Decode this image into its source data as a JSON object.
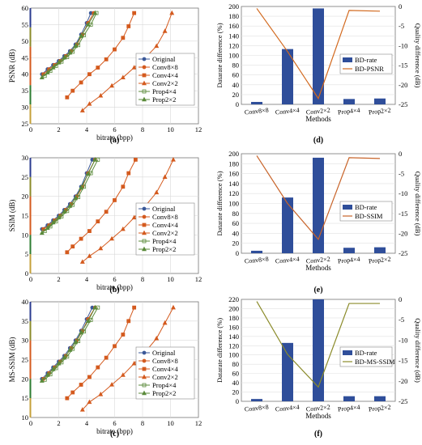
{
  "colors": {
    "original": "#3b5998",
    "conv": "#d45a1e",
    "prop": "#5a8a3a",
    "bar": "#2f4e9a",
    "line_psnr": "#d2691e",
    "line_ssim": "#c8642a",
    "line_msssim": "#8b8b2a"
  },
  "chart_data": [
    {
      "id": "a",
      "panel_label": "(a)",
      "type": "line",
      "ylabel": "PSNR (dB)",
      "xlabel": "bitrate (bpp)",
      "xlim": [
        0,
        12
      ],
      "ylim": [
        25,
        60
      ],
      "xticks": [
        "0",
        "2",
        "4",
        "6",
        "8",
        "10",
        "12"
      ],
      "yticks": [
        "25",
        "30",
        "35",
        "40",
        "45",
        "50",
        "55",
        "60"
      ],
      "grid": true,
      "legend": "bottom-right",
      "series": [
        {
          "name": "Original",
          "x": [
            0.8,
            1.2,
            1.6,
            2.0,
            2.4,
            2.8,
            3.2,
            3.6,
            4.0,
            4.3
          ],
          "y": [
            40.0,
            41.5,
            42.8,
            44.0,
            45.5,
            47.0,
            49.0,
            52.0,
            55.5,
            58.5
          ]
        },
        {
          "name": "Conv8×8",
          "x": [
            0.9,
            1.3,
            1.7,
            2.1,
            2.5,
            2.9,
            3.3,
            3.7,
            4.1,
            4.5
          ],
          "y": [
            40.0,
            41.5,
            42.8,
            44.0,
            45.5,
            47.0,
            49.0,
            52.0,
            55.5,
            58.5
          ]
        },
        {
          "name": "Conv4×4",
          "x": [
            2.6,
            3.0,
            3.6,
            4.2,
            4.8,
            5.4,
            6.0,
            6.6,
            7.0,
            7.4
          ],
          "y": [
            33.0,
            35.0,
            37.5,
            40.0,
            42.0,
            44.5,
            47.5,
            51.0,
            54.5,
            58.5
          ]
        },
        {
          "name": "Conv2×2",
          "x": [
            3.7,
            4.2,
            5.0,
            5.8,
            6.6,
            7.4,
            8.2,
            9.0,
            9.6,
            10.1
          ],
          "y": [
            29.0,
            31.0,
            33.5,
            36.5,
            39.0,
            42.0,
            45.0,
            48.5,
            53.0,
            58.5
          ]
        },
        {
          "name": "Prop4×4",
          "x": [
            1.0,
            1.4,
            1.8,
            2.2,
            2.6,
            3.0,
            3.4,
            3.8,
            4.3,
            4.7
          ],
          "y": [
            39.5,
            41.0,
            42.5,
            43.8,
            45.2,
            46.8,
            48.8,
            51.8,
            55.0,
            58.5
          ]
        },
        {
          "name": "Prop2×2",
          "x": [
            0.8,
            1.2,
            1.6,
            2.0,
            2.4,
            2.8,
            3.2,
            3.6,
            4.1,
            4.6
          ],
          "y": [
            39.0,
            40.5,
            42.0,
            43.5,
            45.0,
            46.5,
            48.5,
            51.5,
            55.0,
            58.5
          ]
        }
      ]
    },
    {
      "id": "b",
      "panel_label": "(b)",
      "type": "line",
      "ylabel": "SSIM (dB)",
      "xlabel": "bitrate (bpp)",
      "xlim": [
        0,
        12
      ],
      "ylim": [
        0,
        30
      ],
      "xticks": [
        "0",
        "2",
        "4",
        "6",
        "8",
        "10",
        "12"
      ],
      "yticks": [
        "0",
        "5",
        "10",
        "15",
        "20",
        "25",
        "30"
      ],
      "grid": true,
      "legend": "bottom-right",
      "series": [
        {
          "name": "Original",
          "x": [
            0.8,
            1.2,
            1.6,
            2.0,
            2.4,
            2.8,
            3.2,
            3.6,
            4.0,
            4.4
          ],
          "y": [
            11.5,
            12.5,
            13.8,
            15.0,
            16.5,
            18.0,
            20.0,
            22.5,
            26.0,
            29.5
          ]
        },
        {
          "name": "Conv8×8",
          "x": [
            0.9,
            1.3,
            1.7,
            2.1,
            2.5,
            2.9,
            3.3,
            3.7,
            4.1,
            4.6
          ],
          "y": [
            11.5,
            12.5,
            13.8,
            15.0,
            16.5,
            18.0,
            20.0,
            22.5,
            26.0,
            29.5
          ]
        },
        {
          "name": "Conv4×4",
          "x": [
            2.6,
            3.0,
            3.6,
            4.2,
            4.8,
            5.4,
            6.0,
            6.6,
            7.0,
            7.5
          ],
          "y": [
            5.5,
            7.0,
            9.0,
            11.0,
            13.5,
            16.0,
            19.0,
            22.5,
            26.0,
            29.5
          ]
        },
        {
          "name": "Conv2×2",
          "x": [
            3.7,
            4.2,
            5.0,
            5.8,
            6.6,
            7.4,
            8.2,
            9.0,
            9.6,
            10.2
          ],
          "y": [
            3.0,
            4.5,
            6.5,
            9.0,
            11.5,
            14.5,
            17.5,
            21.0,
            25.0,
            29.5
          ]
        },
        {
          "name": "Prop4×4",
          "x": [
            1.0,
            1.4,
            1.8,
            2.2,
            2.6,
            3.0,
            3.4,
            3.8,
            4.3,
            4.8
          ],
          "y": [
            11.0,
            12.2,
            13.5,
            14.8,
            16.2,
            17.8,
            19.8,
            22.5,
            26.0,
            29.5
          ]
        },
        {
          "name": "Prop2×2",
          "x": [
            0.8,
            1.2,
            1.6,
            2.0,
            2.4,
            2.8,
            3.2,
            3.6,
            4.1,
            4.6
          ],
          "y": [
            10.5,
            11.8,
            13.2,
            14.5,
            16.0,
            17.5,
            19.5,
            22.2,
            25.8,
            29.5
          ]
        }
      ]
    },
    {
      "id": "c",
      "panel_label": "(c)",
      "type": "line",
      "ylabel": "MS-SSIM (dB)",
      "xlabel": "bitrate (bpp)",
      "xlim": [
        0,
        12
      ],
      "ylim": [
        10,
        40
      ],
      "xticks": [
        "0",
        "2",
        "4",
        "6",
        "8",
        "10",
        "12"
      ],
      "yticks": [
        "10",
        "15",
        "20",
        "25",
        "30",
        "35",
        "40"
      ],
      "grid": true,
      "legend": "bottom-right",
      "series": [
        {
          "name": "Original",
          "x": [
            0.8,
            1.2,
            1.6,
            2.0,
            2.4,
            2.8,
            3.2,
            3.6,
            4.0,
            4.4
          ],
          "y": [
            20.0,
            21.5,
            23.0,
            24.5,
            26.0,
            28.0,
            30.0,
            32.5,
            35.5,
            38.5
          ]
        },
        {
          "name": "Conv8×8",
          "x": [
            0.9,
            1.3,
            1.7,
            2.1,
            2.5,
            2.9,
            3.3,
            3.7,
            4.1,
            4.6
          ],
          "y": [
            20.0,
            21.5,
            23.0,
            24.5,
            26.0,
            28.0,
            30.0,
            32.5,
            35.5,
            38.5
          ]
        },
        {
          "name": "Conv4×4",
          "x": [
            2.6,
            3.0,
            3.6,
            4.2,
            4.8,
            5.4,
            6.0,
            6.6,
            7.0,
            7.4
          ],
          "y": [
            15.0,
            16.5,
            18.5,
            20.5,
            23.0,
            25.5,
            28.5,
            31.5,
            35.0,
            38.5
          ]
        },
        {
          "name": "Conv2×2",
          "x": [
            3.7,
            4.2,
            5.0,
            5.8,
            6.6,
            7.4,
            8.2,
            9.0,
            9.6,
            10.2
          ],
          "y": [
            12.0,
            14.0,
            16.0,
            18.5,
            21.0,
            24.0,
            27.0,
            30.5,
            34.5,
            38.5
          ]
        },
        {
          "name": "Prop4×4",
          "x": [
            1.0,
            1.4,
            1.8,
            2.2,
            2.6,
            3.0,
            3.4,
            3.8,
            4.3,
            4.8
          ],
          "y": [
            19.8,
            21.2,
            22.8,
            24.3,
            25.8,
            27.8,
            29.8,
            32.3,
            35.3,
            38.5
          ]
        },
        {
          "name": "Prop2×2",
          "x": [
            0.8,
            1.2,
            1.6,
            2.0,
            2.4,
            2.8,
            3.2,
            3.6,
            4.1,
            4.6
          ],
          "y": [
            19.5,
            21.0,
            22.5,
            24.0,
            25.5,
            27.5,
            29.5,
            32.0,
            35.0,
            38.5
          ]
        }
      ]
    },
    {
      "id": "d",
      "panel_label": "(d)",
      "type": "bar",
      "ylabel": "Datarate difference (%)",
      "y2label": "Quality difference (dB)",
      "xlabel": "Methods",
      "categories": [
        "Conv8×8",
        "Conv4×4",
        "Conv2×2",
        "Prop4×4",
        "Prop2×2"
      ],
      "ylim": [
        0,
        200
      ],
      "y2lim": [
        -25,
        0
      ],
      "yticks": [
        "0",
        "20",
        "40",
        "60",
        "80",
        "100",
        "120",
        "140",
        "160",
        "180",
        "200"
      ],
      "y2ticks": [
        "0",
        "-5",
        "-10",
        "-15",
        "-20",
        "-25"
      ],
      "legend": "center-right",
      "series": [
        {
          "name": "BD-rate",
          "kind": "bar",
          "values": [
            5,
            113,
            196,
            11,
            12
          ]
        },
        {
          "name": "BD-PSNR",
          "kind": "line",
          "values": [
            -0.5,
            -11.5,
            -23.5,
            -1.0,
            -1.2
          ]
        }
      ]
    },
    {
      "id": "e",
      "panel_label": "(e)",
      "type": "bar",
      "ylabel": "Datarate difference (%)",
      "y2label": "Quality difference (dB)",
      "xlabel": "Methods",
      "categories": [
        "Conv8×8",
        "Conv4×4",
        "Conv2×2",
        "Prop4×4",
        "Prop2×2"
      ],
      "ylim": [
        0,
        200
      ],
      "y2lim": [
        -25,
        0
      ],
      "yticks": [
        "0",
        "20",
        "40",
        "60",
        "80",
        "100",
        "120",
        "140",
        "160",
        "180",
        "200"
      ],
      "y2ticks": [
        "0",
        "-5",
        "-10",
        "-15",
        "-20",
        "-25"
      ],
      "legend": "center-right",
      "series": [
        {
          "name": "BD-rate",
          "kind": "bar",
          "values": [
            5,
            112,
            192,
            11,
            12
          ]
        },
        {
          "name": "BD-SSIM",
          "kind": "line",
          "values": [
            -0.5,
            -12.5,
            -21.5,
            -1.0,
            -1.2
          ]
        }
      ]
    },
    {
      "id": "f",
      "panel_label": "(f)",
      "type": "bar",
      "ylabel": "Datarate difference (%)",
      "y2label": "Quality difference (dB)",
      "xlabel": "Methods",
      "categories": [
        "Conv8×8",
        "Conv4×4",
        "Conv2×2",
        "Prop4×4",
        "Prop2×2"
      ],
      "ylim": [
        0,
        220
      ],
      "y2lim": [
        -25,
        0
      ],
      "yticks": [
        "0",
        "20",
        "40",
        "60",
        "80",
        "100",
        "120",
        "140",
        "160",
        "180",
        "200",
        "220"
      ],
      "y2ticks": [
        "0",
        "-5",
        "-10",
        "-15",
        "-20",
        "-25"
      ],
      "legend": "center-right",
      "series": [
        {
          "name": "BD-rate",
          "kind": "bar",
          "values": [
            5,
            126,
            222,
            11,
            11
          ]
        },
        {
          "name": "BD-MS-SSIM",
          "kind": "line",
          "values": [
            -0.5,
            -13.5,
            -21.5,
            -1.0,
            -1.0
          ]
        }
      ]
    }
  ]
}
